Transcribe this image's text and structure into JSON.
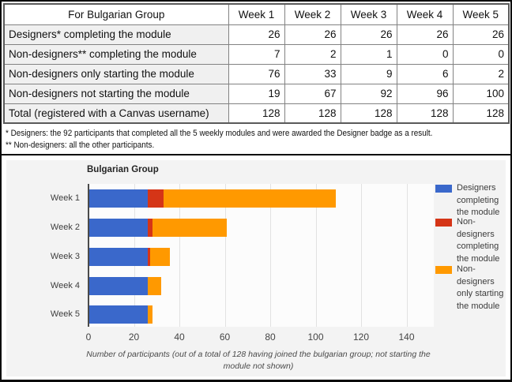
{
  "table": {
    "header": [
      "For Bulgarian Group",
      "Week 1",
      "Week 2",
      "Week 3",
      "Week 4",
      "Week 5"
    ],
    "rows": [
      {
        "label": "Designers* completing the module",
        "values": [
          26,
          26,
          26,
          26,
          26
        ]
      },
      {
        "label": "Non-designers** completing the module",
        "values": [
          7,
          2,
          1,
          0,
          0
        ]
      },
      {
        "label": "Non-designers only starting the module",
        "values": [
          76,
          33,
          9,
          6,
          2
        ]
      },
      {
        "label": "Non-designers not starting the module",
        "values": [
          19,
          67,
          92,
          96,
          100
        ]
      },
      {
        "label": "Total (registered with a Canvas username)",
        "values": [
          128,
          128,
          128,
          128,
          128
        ]
      }
    ]
  },
  "footnotes": [
    "* Designers: the 92 participants that completed all the 5 weekly modules and were awarded the Designer badge as a result.",
    "** Non-designers: all the other participants."
  ],
  "chart_data": {
    "type": "bar",
    "orientation": "horizontal",
    "stacked": true,
    "title": "Bulgarian Group",
    "categories": [
      "Week 1",
      "Week 2",
      "Week 3",
      "Week 4",
      "Week 5"
    ],
    "series": [
      {
        "name": "Designers completing the module",
        "color": "#3a68cb",
        "values": [
          26,
          26,
          26,
          26,
          26
        ]
      },
      {
        "name": "Non-designers completing the module",
        "color": "#d53517",
        "values": [
          7,
          2,
          1,
          0,
          0
        ]
      },
      {
        "name": "Non-designers only starting the module",
        "color": "#ff9900",
        "values": [
          76,
          33,
          9,
          6,
          2
        ]
      }
    ],
    "totals_shown": [
      109,
      61,
      36,
      32,
      28
    ],
    "x_ticks": [
      0,
      20,
      40,
      60,
      80,
      100,
      120,
      140
    ],
    "xlim": [
      0,
      148
    ],
    "grid": true,
    "legend_position": "right",
    "xlabel": "Number of participants (out of a total of 128 having joined the bulgarian group; not starting the module not shown)"
  }
}
